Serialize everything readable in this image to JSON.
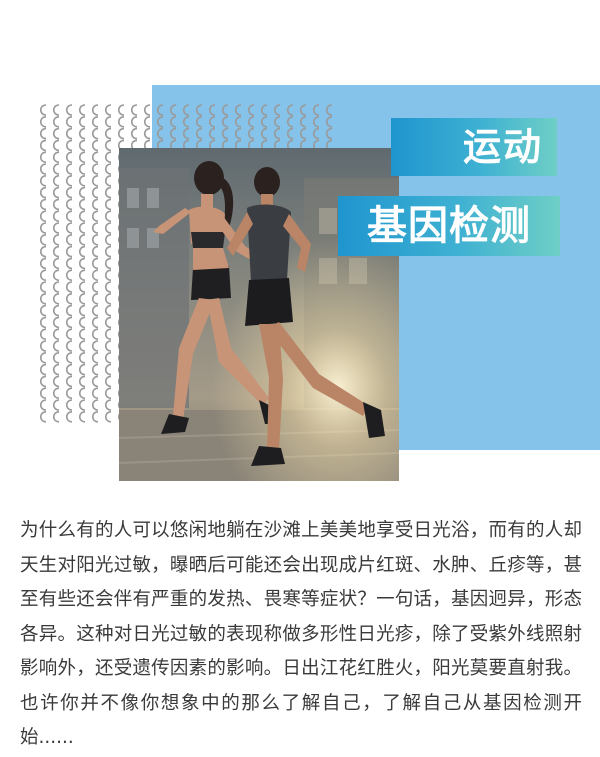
{
  "header": {
    "title_line1": "运动",
    "title_line2": "基因检测"
  },
  "photo": {
    "subject": "man and woman running at sunset",
    "icon": "running-people-photo"
  },
  "colors": {
    "panel_blue": "#85c3ea",
    "badge_gradient_start": "#1f95cf",
    "badge_gradient_end": "#6fcfc6",
    "pattern_gray": "#9a9a9a",
    "text": "#3a3a3a"
  },
  "article": {
    "body": "为什么有的人可以悠闲地躺在沙滩上美美地享受日光浴，而有的人却天生对阳光过敏，曝晒后可能还会出现成片红斑、水肿、丘疹等，甚至有些还会伴有严重的发热、畏寒等症状？一句话，基因迥异，形态各异。这种对日光过敏的表现称做多形性日光疹，除了受紫外线照射影响外，还受遗传因素的影响。日出江花红胜火，阳光莫要直射我。也许你并不像你想象中的那么了解自己，了解自己从基因检测开始......"
  }
}
